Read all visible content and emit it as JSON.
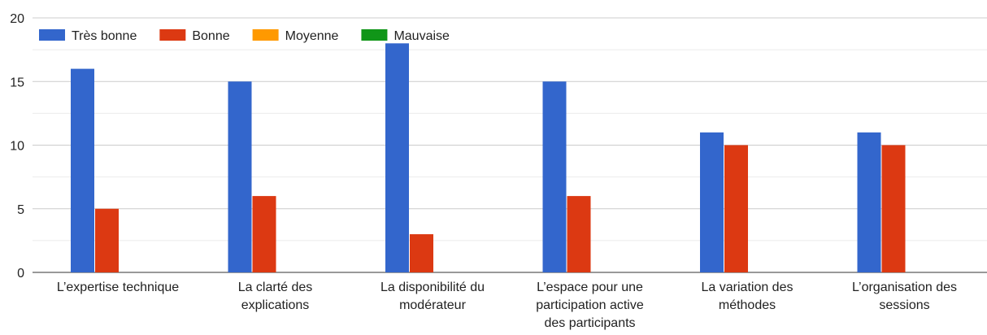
{
  "chart_data": {
    "type": "bar",
    "categories": [
      "L’expertise technique",
      "La clarté des\nexplications",
      "La disponibilité du\nmodérateur",
      "L’espace pour une\nparticipation active\ndes participants",
      "La variation des\nméthodes",
      "L’organisation des\nsessions"
    ],
    "series": [
      {
        "name": "Très bonne",
        "color": "#3366cc",
        "values": [
          16,
          15,
          18,
          15,
          11,
          11
        ]
      },
      {
        "name": "Bonne",
        "color": "#dc3912",
        "values": [
          5,
          6,
          3,
          6,
          10,
          10
        ]
      },
      {
        "name": "Moyenne",
        "color": "#ff9900",
        "values": [
          0,
          0,
          0,
          0,
          0,
          0
        ]
      },
      {
        "name": "Mauvaise",
        "color": "#109618",
        "values": [
          0,
          0,
          0,
          0,
          0,
          0
        ]
      }
    ],
    "ylim": [
      0,
      20
    ],
    "yticks": [
      0,
      5,
      10,
      15,
      20
    ],
    "grid": true,
    "minor_grid": true,
    "legend": "top"
  }
}
